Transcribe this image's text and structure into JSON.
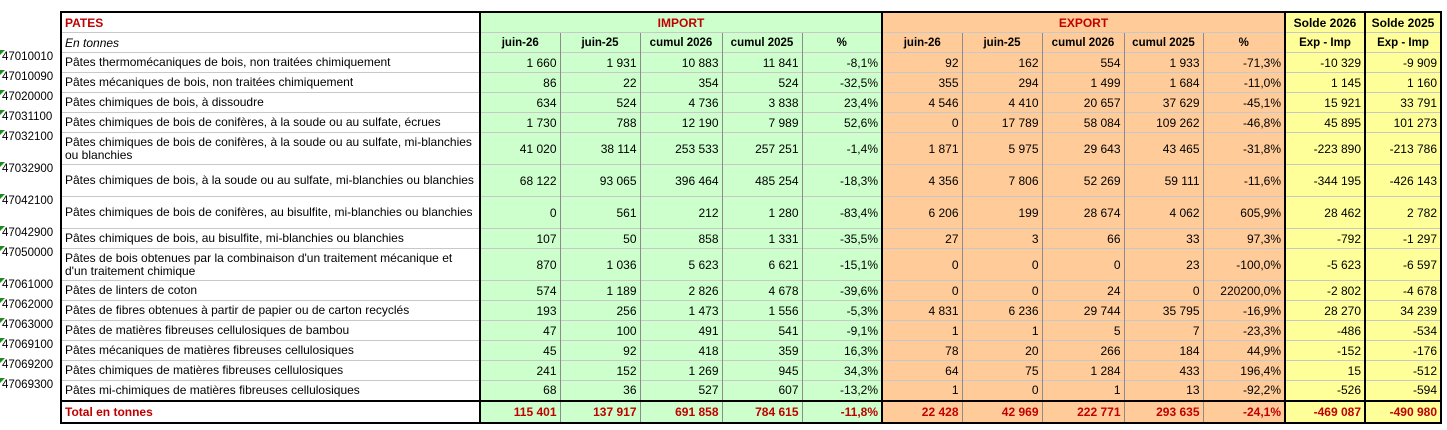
{
  "header": {
    "title": "PATES",
    "import_label": "IMPORT",
    "export_label": "EXPORT",
    "solde1_label": "Solde 2026",
    "solde2_label": "Solde 2025",
    "unit_label": "En tonnes",
    "cols": [
      "juin-26",
      "juin-25",
      "cumul 2026",
      "cumul 2025",
      "%"
    ],
    "solde_sub": "Exp - Imp"
  },
  "rows": [
    {
      "code": "47010010",
      "label": "Pâtes thermomécaniques de bois, non traitées chimiquement",
      "imp": [
        "1 660",
        "1 931",
        "10 883",
        "11 841",
        "-8,1%"
      ],
      "exp": [
        "92",
        "162",
        "554",
        "1 933",
        "-71,3%"
      ],
      "s26": "-10 329",
      "s25": "-9 909"
    },
    {
      "code": "47010090",
      "label": "Pâtes mécaniques de bois, non traitées chimiquement",
      "imp": [
        "86",
        "22",
        "354",
        "524",
        "-32,5%"
      ],
      "exp": [
        "355",
        "294",
        "1 499",
        "1 684",
        "-11,0%"
      ],
      "s26": "1 145",
      "s25": "1 160"
    },
    {
      "code": "47020000",
      "label": "Pâtes chimiques de bois, à dissoudre",
      "imp": [
        "634",
        "524",
        "4 736",
        "3 838",
        "23,4%"
      ],
      "exp": [
        "4 546",
        "4 410",
        "20 657",
        "37 629",
        "-45,1%"
      ],
      "s26": "15 921",
      "s25": "33 791"
    },
    {
      "code": "47031100",
      "label": "Pâtes chimiques de bois de conifères, à la soude ou au sulfate, écrues",
      "imp": [
        "1 730",
        "788",
        "12 190",
        "7 989",
        "52,6%"
      ],
      "exp": [
        "0",
        "17 789",
        "58 084",
        "109 262",
        "-46,8%"
      ],
      "s26": "45 895",
      "s25": "101 273"
    },
    {
      "code": "47032100",
      "label": "Pâtes chimiques de bois de conifères, à la soude ou au sulfate, mi-blanchies ou blanchies",
      "imp": [
        "41 020",
        "38 114",
        "253 533",
        "257 251",
        "-1,4%"
      ],
      "exp": [
        "1 871",
        "5 975",
        "29 643",
        "43 465",
        "-31,8%"
      ],
      "s26": "-223 890",
      "s25": "-213 786"
    },
    {
      "code": "47032900",
      "label": "Pâtes chimiques de bois, à la soude ou au sulfate, mi-blanchies ou blanchies",
      "imp": [
        "68 122",
        "93 065",
        "396 464",
        "485 254",
        "-18,3%"
      ],
      "exp": [
        "4 356",
        "7 806",
        "52 269",
        "59 111",
        "-11,6%"
      ],
      "s26": "-344 195",
      "s25": "-426 143"
    },
    {
      "code": "47042100",
      "label": "Pâtes chimiques de bois de conifères, au bisulfite, mi-blanchies ou blanchies",
      "imp": [
        "0",
        "561",
        "212",
        "1 280",
        "-83,4%"
      ],
      "exp": [
        "6 206",
        "199",
        "28 674",
        "4 062",
        "605,9%"
      ],
      "s26": "28 462",
      "s25": "2 782"
    },
    {
      "code": "47042900",
      "label": "Pâtes chimiques de bois, au bisulfite, mi-blanchies ou blanchies",
      "imp": [
        "107",
        "50",
        "858",
        "1 331",
        "-35,5%"
      ],
      "exp": [
        "27",
        "3",
        "66",
        "33",
        "97,3%"
      ],
      "s26": "-792",
      "s25": "-1 297"
    },
    {
      "code": "47050000",
      "label": "Pâtes de bois obtenues par la combinaison d'un traitement mécanique et d'un traitement chimique",
      "imp": [
        "870",
        "1 036",
        "5 623",
        "6 621",
        "-15,1%"
      ],
      "exp": [
        "0",
        "0",
        "0",
        "23",
        "-100,0%"
      ],
      "s26": "-5 623",
      "s25": "-6 597"
    },
    {
      "code": "47061000",
      "label": "Pâtes de linters de coton",
      "imp": [
        "574",
        "1 189",
        "2 826",
        "4 678",
        "-39,6%"
      ],
      "exp": [
        "0",
        "0",
        "24",
        "0",
        "220200,0%"
      ],
      "s26": "-2 802",
      "s25": "-4 678"
    },
    {
      "code": "47062000",
      "label": "Pâtes de fibres obtenues à partir de papier ou de carton recyclés",
      "imp": [
        "193",
        "256",
        "1 473",
        "1 556",
        "-5,3%"
      ],
      "exp": [
        "4 831",
        "6 236",
        "29 744",
        "35 795",
        "-16,9%"
      ],
      "s26": "28 270",
      "s25": "34 239"
    },
    {
      "code": "47063000",
      "label": "Pâtes de matières fibreuses cellulosiques de bambou",
      "imp": [
        "47",
        "100",
        "491",
        "541",
        "-9,1%"
      ],
      "exp": [
        "1",
        "1",
        "5",
        "7",
        "-23,3%"
      ],
      "s26": "-486",
      "s25": "-534"
    },
    {
      "code": "47069100",
      "label": "Pâtes mécaniques de matières fibreuses cellulosiques",
      "imp": [
        "45",
        "92",
        "418",
        "359",
        "16,3%"
      ],
      "exp": [
        "78",
        "20",
        "266",
        "184",
        "44,9%"
      ],
      "s26": "-152",
      "s25": "-176"
    },
    {
      "code": "47069200",
      "label": "Pâtes chimiques de matières fibreuses cellulosiques",
      "imp": [
        "241",
        "152",
        "1 269",
        "945",
        "34,3%"
      ],
      "exp": [
        "64",
        "75",
        "1 284",
        "433",
        "196,4%"
      ],
      "s26": "15",
      "s25": "-512"
    },
    {
      "code": "47069300",
      "label": "Pâtes mi-chimiques de matières fibreuses cellulosiques",
      "imp": [
        "68",
        "36",
        "527",
        "607",
        "-13,2%"
      ],
      "exp": [
        "1",
        "0",
        "1",
        "13",
        "-92,2%"
      ],
      "s26": "-526",
      "s25": "-594"
    }
  ],
  "total": {
    "label": "Total en tonnes",
    "imp": [
      "115 401",
      "137 917",
      "691 858",
      "784 615",
      "-11,8%"
    ],
    "exp": [
      "22 428",
      "42 969",
      "222 771",
      "293 635",
      "-24,1%"
    ],
    "s26": "-469 087",
    "s25": "-490 980"
  },
  "colors": {
    "import_bg": "#ccffcc",
    "export_bg": "#ffcc99",
    "solde_bg": "#ffff99",
    "accent_red": "#c00000",
    "marker_green": "#1f8a1f"
  }
}
